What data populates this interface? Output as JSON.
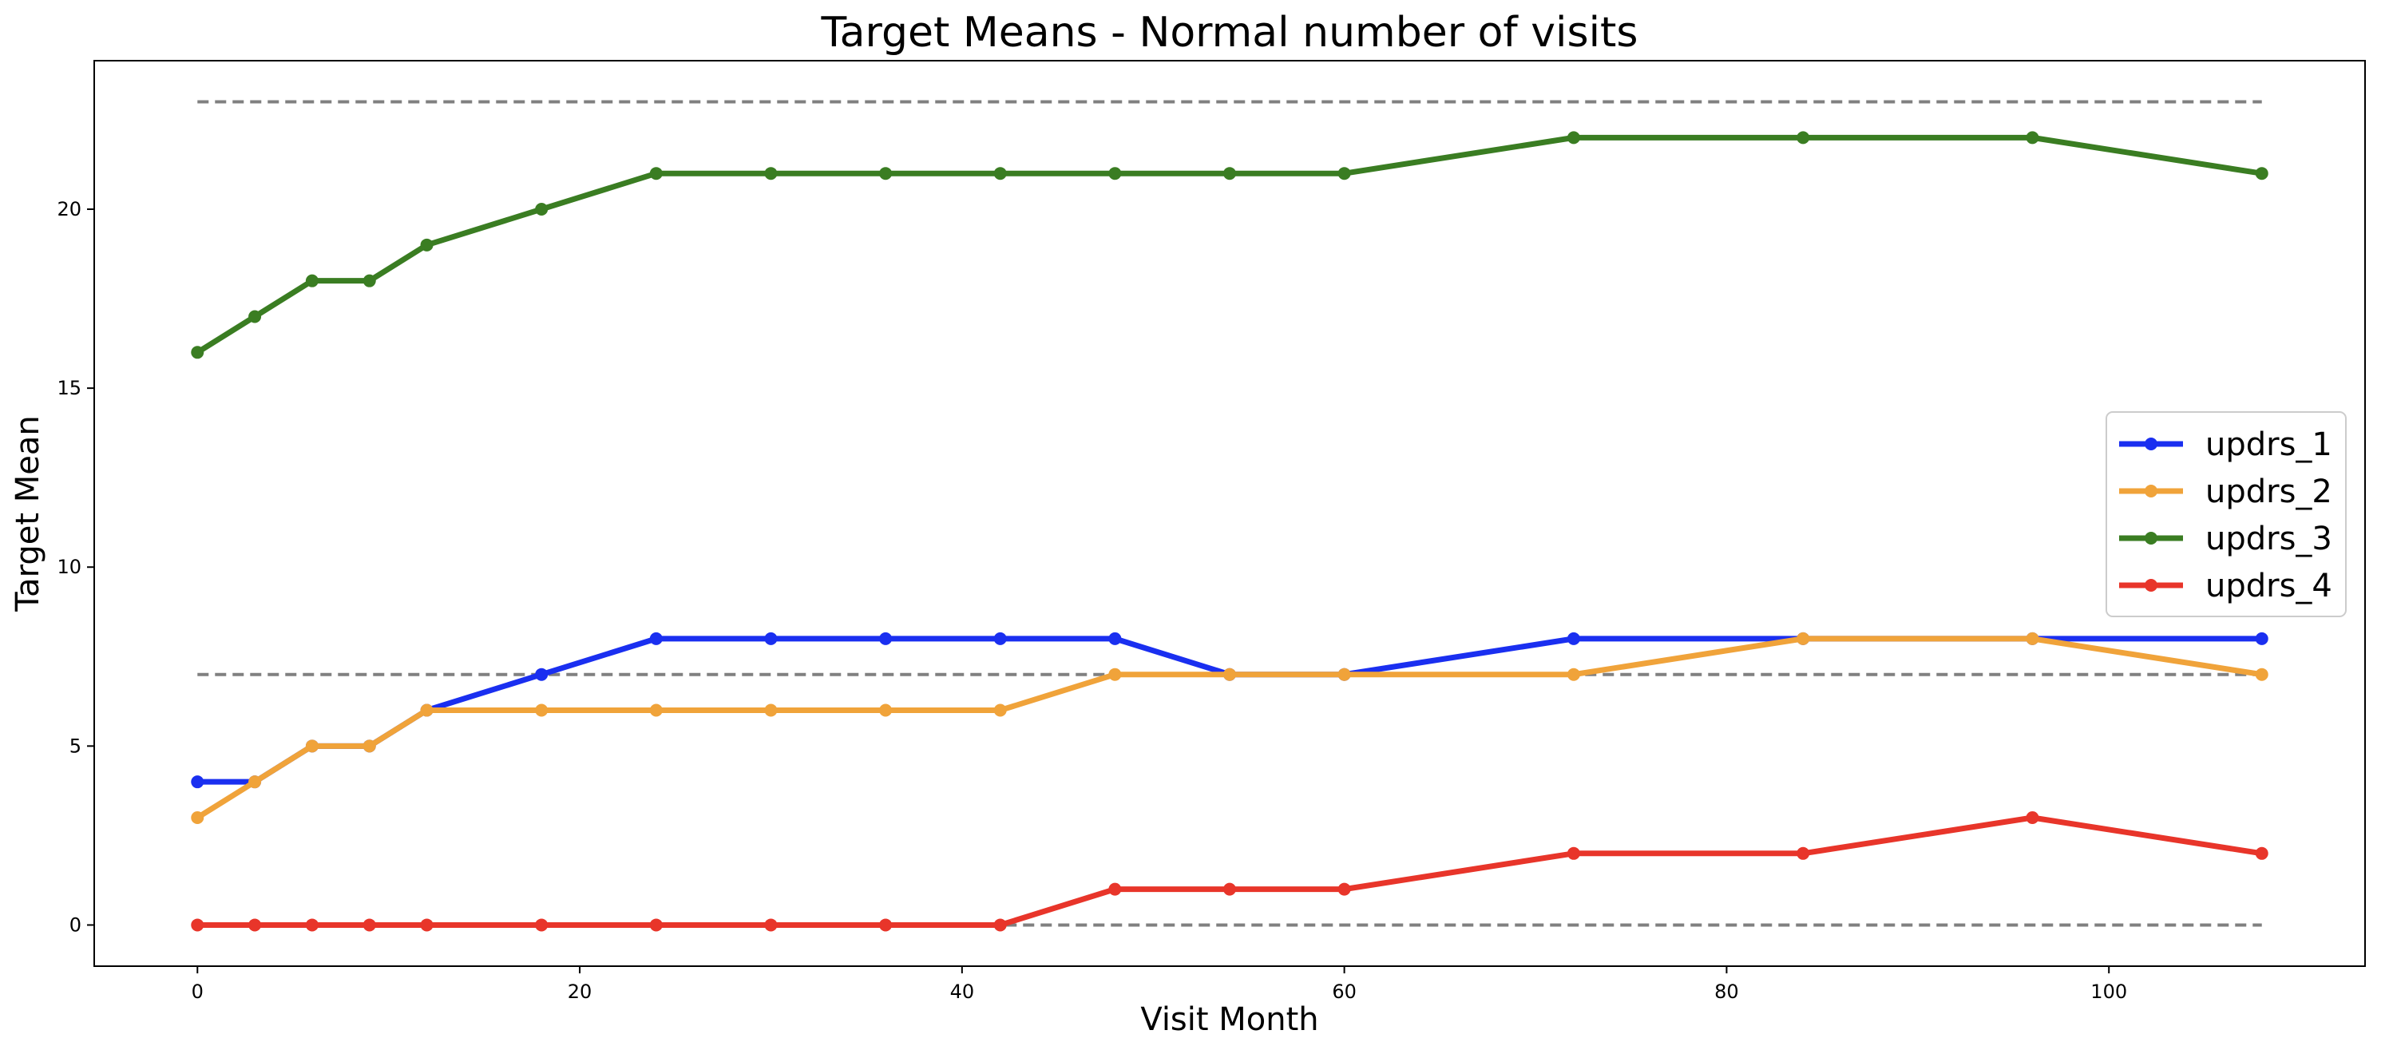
{
  "chart_data": {
    "type": "line",
    "title": "Target Means - Normal number of visits",
    "xlabel": "Visit Month",
    "ylabel": "Target Mean",
    "xlim": [
      -5.4,
      113.4
    ],
    "ylim": [
      -1.15,
      24.15
    ],
    "xticks": [
      0,
      20,
      40,
      60,
      80,
      100
    ],
    "yticks": [
      0,
      5,
      10,
      15,
      20
    ],
    "grid": false,
    "legend_position": "center-right",
    "x": [
      0,
      3,
      6,
      9,
      12,
      18,
      24,
      30,
      36,
      42,
      48,
      54,
      60,
      72,
      84,
      96,
      108
    ],
    "series": [
      {
        "name": "updrs_1",
        "color": "#1a2ff0",
        "values": [
          4,
          4,
          5,
          5,
          6,
          7,
          8,
          8,
          8,
          8,
          8,
          7,
          7,
          8,
          8,
          8,
          8
        ]
      },
      {
        "name": "updrs_2",
        "color": "#f0a33a",
        "values": [
          3,
          4,
          5,
          5,
          6,
          6,
          6,
          6,
          6,
          6,
          7,
          7,
          7,
          7,
          8,
          8,
          7
        ]
      },
      {
        "name": "updrs_3",
        "color": "#3a7d22",
        "values": [
          16,
          17,
          18,
          18,
          19,
          20,
          21,
          21,
          21,
          21,
          21,
          21,
          21,
          22,
          22,
          22,
          21
        ]
      },
      {
        "name": "updrs_4",
        "color": "#e8352a",
        "values": [
          0,
          0,
          0,
          0,
          0,
          0,
          0,
          0,
          0,
          0,
          1,
          1,
          1,
          2,
          2,
          3,
          2
        ]
      }
    ],
    "reference_lines": [
      {
        "y": 23,
        "x_from": 0,
        "x_to": 108,
        "style": "dashed",
        "color": "#808080"
      },
      {
        "y": 7,
        "x_from": 0,
        "x_to": 108,
        "style": "dashed",
        "color": "#808080"
      },
      {
        "y": 0,
        "x_from": 0,
        "x_to": 108,
        "style": "dashed",
        "color": "#808080"
      }
    ]
  }
}
